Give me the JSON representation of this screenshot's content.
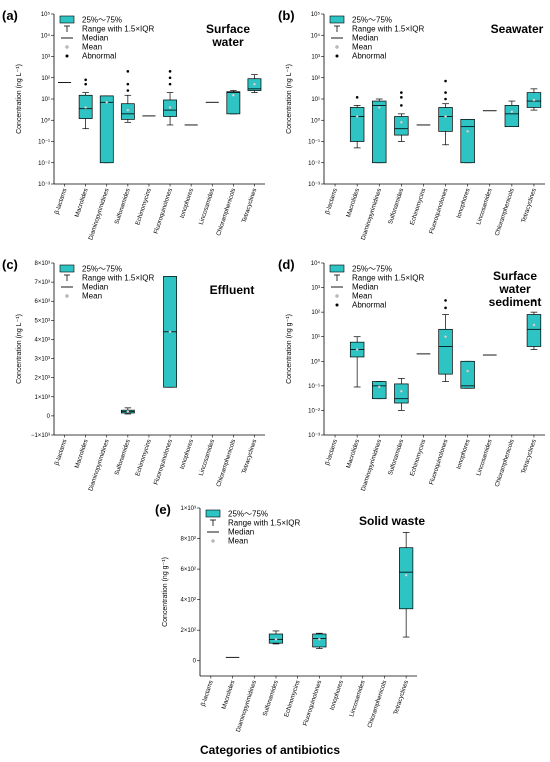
{
  "figure": {
    "xlabel": "Categories of antibiotics",
    "box_color": "#2ec4c4",
    "legend_labels": {
      "box": "25%～75%",
      "range": "Range with 1.5×IQR",
      "median": "Median",
      "mean": "Mean",
      "abnormal": "Abnormal"
    }
  },
  "chart_data": [
    {
      "id": "a",
      "label": "(a)",
      "title": [
        "Surface",
        "water"
      ],
      "type": "box",
      "ylabel": "Concentration (ng L⁻¹)",
      "yscale": "log",
      "ylim": [
        0.001,
        100000
      ],
      "yticks": [
        {
          "v": 0.001,
          "t": "10⁻³"
        },
        {
          "v": 0.01,
          "t": "10⁻²"
        },
        {
          "v": 0.1,
          "t": "10⁻¹"
        },
        {
          "v": 1,
          "t": "10⁰"
        },
        {
          "v": 10,
          "t": "10¹"
        },
        {
          "v": 100,
          "t": "10²"
        },
        {
          "v": 1000,
          "t": "10³"
        },
        {
          "v": 10000,
          "t": "10⁴"
        },
        {
          "v": 100000,
          "t": "10⁵"
        }
      ],
      "legend": [
        "box",
        "mean",
        "abnormal"
      ],
      "categories": [
        "β-lactams",
        "Macrolides",
        "Diaminopyrimidines",
        "Sulfonamides",
        "Echinomycins",
        "Fluoroquinolones",
        "Ionophores",
        "Lincosamides",
        "Chloramphenicols",
        "Tetracyclines"
      ],
      "boxes": [
        {
          "cat": 0,
          "flat": 60
        },
        {
          "cat": 1,
          "q1": 1.2,
          "q3": 15,
          "med": 3.5,
          "wlo": 0.4,
          "whi": 20,
          "mean": 4,
          "out": [
            50,
            80
          ]
        },
        {
          "cat": 2,
          "q1": 0.01,
          "q3": 14,
          "med": 7,
          "wlo": 0.01,
          "whi": 14,
          "mean": 7
        },
        {
          "cat": 3,
          "q1": 1.1,
          "q3": 6,
          "med": 2,
          "wlo": 0.8,
          "whi": 15,
          "mean": 3,
          "out": [
            25,
            50,
            200
          ]
        },
        {
          "cat": 4,
          "flat": 1.6
        },
        {
          "cat": 5,
          "q1": 1.5,
          "q3": 9,
          "med": 3,
          "wlo": 0.6,
          "whi": 20,
          "mean": 4,
          "out": [
            50,
            100,
            200
          ]
        },
        {
          "cat": 6,
          "flat": 0.6
        },
        {
          "cat": 7,
          "flat": 7
        },
        {
          "cat": 8,
          "q1": 2,
          "q3": 22,
          "med": 20,
          "wlo": 2,
          "whi": 25,
          "mean": 15
        },
        {
          "cat": 9,
          "q1": 25,
          "q3": 90,
          "med": 30,
          "wlo": 20,
          "whi": 140,
          "mean": 50
        }
      ]
    },
    {
      "id": "b",
      "label": "(b)",
      "title": [
        "Seawater"
      ],
      "type": "box",
      "ylabel": "Concentration (ng L⁻¹)",
      "yscale": "log",
      "ylim": [
        0.001,
        100000
      ],
      "yticks": [
        {
          "v": 0.001,
          "t": "10⁻³"
        },
        {
          "v": 0.01,
          "t": "10⁻²"
        },
        {
          "v": 0.1,
          "t": "10⁻¹"
        },
        {
          "v": 1,
          "t": "10⁰"
        },
        {
          "v": 10,
          "t": "10¹"
        },
        {
          "v": 100,
          "t": "10²"
        },
        {
          "v": 1000,
          "t": "10³"
        },
        {
          "v": 10000,
          "t": "10⁴"
        },
        {
          "v": 100000,
          "t": "10⁵"
        }
      ],
      "legend": [
        "box",
        "mean",
        "abnormal"
      ],
      "categories": [
        "β-lactams",
        "Macrolides",
        "Diaminopyrimidines",
        "Sulfonamides",
        "Echinomycins",
        "Fluoroquinolones",
        "Ionophores",
        "Lincosamides",
        "Chloramphenicols",
        "Tetracyclines"
      ],
      "boxes": [
        {
          "cat": 1,
          "q1": 0.1,
          "q3": 4,
          "med": 1.5,
          "wlo": 0.05,
          "whi": 5,
          "mean": 1.5,
          "out": [
            12
          ]
        },
        {
          "cat": 2,
          "q1": 0.01,
          "q3": 8,
          "med": 5,
          "wlo": 0.01,
          "whi": 10,
          "mean": 4
        },
        {
          "cat": 3,
          "q1": 0.2,
          "q3": 1.5,
          "med": 0.4,
          "wlo": 0.1,
          "whi": 2,
          "mean": 0.8,
          "out": [
            5,
            12,
            20
          ]
        },
        {
          "cat": 4,
          "flat": 0.6
        },
        {
          "cat": 5,
          "q1": 0.3,
          "q3": 4,
          "med": 1.5,
          "wlo": 0.07,
          "whi": 6,
          "mean": 1.5,
          "out": [
            10,
            20,
            70
          ]
        },
        {
          "cat": 6,
          "q1": 0.01,
          "q3": 1.1,
          "med": 0.5,
          "wlo": 0.01,
          "whi": 1.1,
          "mean": 0.3
        },
        {
          "cat": 7,
          "flat": 2.8
        },
        {
          "cat": 8,
          "q1": 0.5,
          "q3": 5,
          "med": 2,
          "wlo": 0.5,
          "whi": 8,
          "mean": 2.5
        },
        {
          "cat": 9,
          "q1": 4,
          "q3": 20,
          "med": 8,
          "wlo": 3,
          "whi": 30,
          "mean": 9
        }
      ]
    },
    {
      "id": "c",
      "label": "(c)",
      "title": [
        "Effluent"
      ],
      "type": "box",
      "ylabel": "Concentration (ng L⁻¹)",
      "yscale": "linear",
      "ylim": [
        -1000,
        8000
      ],
      "yticks": [
        {
          "v": -1000,
          "t": "−1×10³"
        },
        {
          "v": 0,
          "t": "0"
        },
        {
          "v": 1000,
          "t": "1×10³"
        },
        {
          "v": 2000,
          "t": "2×10³"
        },
        {
          "v": 3000,
          "t": "3×10³"
        },
        {
          "v": 4000,
          "t": "4×10³"
        },
        {
          "v": 5000,
          "t": "5×10³"
        },
        {
          "v": 6000,
          "t": "6×10³"
        },
        {
          "v": 7000,
          "t": "7×10³"
        },
        {
          "v": 8000,
          "t": "8×10³"
        }
      ],
      "legend": [
        "box",
        "mean"
      ],
      "categories": [
        "β-lactams",
        "Macrolides",
        "Diaminopyrimidines",
        "Sulfonamides",
        "Echinomycins",
        "Fluoroquinolones",
        "Ionophores",
        "Lincosamides",
        "Chloramphenicols",
        "Tetracyclines"
      ],
      "boxes": [
        {
          "cat": 3,
          "q1": 150,
          "q3": 300,
          "med": 220,
          "wlo": 100,
          "whi": 420,
          "mean": 230
        },
        {
          "cat": 5,
          "q1": 1500,
          "q3": 7300,
          "med": 4400,
          "wlo": 1500,
          "whi": 7300,
          "mean": 4400
        }
      ]
    },
    {
      "id": "d",
      "label": "(d)",
      "title": [
        "Surface",
        "water",
        "sediment"
      ],
      "type": "box",
      "ylabel": "Concentration (ng g⁻¹)",
      "yscale": "log",
      "ylim": [
        0.001,
        10000
      ],
      "yticks": [
        {
          "v": 0.001,
          "t": "10⁻³"
        },
        {
          "v": 0.01,
          "t": "10⁻²"
        },
        {
          "v": 0.1,
          "t": "10⁻¹"
        },
        {
          "v": 1,
          "t": "10⁰"
        },
        {
          "v": 10,
          "t": "10¹"
        },
        {
          "v": 100,
          "t": "10²"
        },
        {
          "v": 1000,
          "t": "10³"
        },
        {
          "v": 10000,
          "t": "10⁴"
        }
      ],
      "legend": [
        "box",
        "mean",
        "abnormal"
      ],
      "categories": [
        "β-lactams",
        "Macrolides",
        "Diaminopyrimidines",
        "Sulfonamides",
        "Echinomycins",
        "Fluoroquinolones",
        "Ionophores",
        "Lincosamides",
        "Chloramphenicols",
        "Tetracyclines"
      ],
      "boxes": [
        {
          "cat": 1,
          "q1": 1.5,
          "q3": 6,
          "med": 3,
          "wlo": 0.09,
          "whi": 10,
          "mean": 3
        },
        {
          "cat": 2,
          "q1": 0.03,
          "q3": 0.15,
          "med": 0.1,
          "wlo": 0.03,
          "whi": 0.15,
          "mean": 0.09
        },
        {
          "cat": 3,
          "q1": 0.02,
          "q3": 0.12,
          "med": 0.03,
          "wlo": 0.01,
          "whi": 0.2,
          "mean": 0.06
        },
        {
          "cat": 4,
          "flat": 2
        },
        {
          "cat": 5,
          "q1": 0.3,
          "q3": 20,
          "med": 4,
          "wlo": 0.15,
          "whi": 80,
          "mean": 10,
          "out": [
            150,
            300
          ]
        },
        {
          "cat": 6,
          "q1": 0.08,
          "q3": 1,
          "med": 0.1,
          "wlo": 0.08,
          "whi": 1,
          "mean": 0.4
        },
        {
          "cat": 7,
          "flat": 1.8
        },
        {
          "cat": 9,
          "q1": 4,
          "q3": 80,
          "med": 20,
          "wlo": 3,
          "whi": 100,
          "mean": 30,
          "out": [
            300
          ]
        }
      ]
    },
    {
      "id": "e",
      "label": "(e)",
      "title": [
        "Solid waste"
      ],
      "type": "box",
      "ylabel": "Concentration (ng g⁻¹)",
      "yscale": "linear",
      "ylim": [
        -100,
        1000
      ],
      "yticks": [
        {
          "v": 0,
          "t": "0"
        },
        {
          "v": 200,
          "t": "2×10²"
        },
        {
          "v": 400,
          "t": "4×10²"
        },
        {
          "v": 600,
          "t": "6×10²"
        },
        {
          "v": 800,
          "t": "8×10²"
        },
        {
          "v": 1000,
          "t": "1×10³"
        }
      ],
      "legend": [
        "box",
        "mean"
      ],
      "categories": [
        "β-lactams",
        "Macrolides",
        "Diaminopyrimidines",
        "Sulfonamides",
        "Echinomycins",
        "Fluoroquinolones",
        "Ionophores",
        "Lincosamides",
        "Chloramphenicols",
        "Tetracyclines"
      ],
      "boxes": [
        {
          "cat": 1,
          "flat": 22
        },
        {
          "cat": 3,
          "q1": 115,
          "q3": 175,
          "med": 140,
          "wlo": 110,
          "whi": 195,
          "mean": 140
        },
        {
          "cat": 5,
          "q1": 90,
          "q3": 175,
          "med": 145,
          "wlo": 80,
          "whi": 180,
          "mean": 140
        },
        {
          "cat": 9,
          "q1": 340,
          "q3": 740,
          "med": 580,
          "wlo": 155,
          "whi": 840,
          "mean": 560
        }
      ]
    }
  ]
}
